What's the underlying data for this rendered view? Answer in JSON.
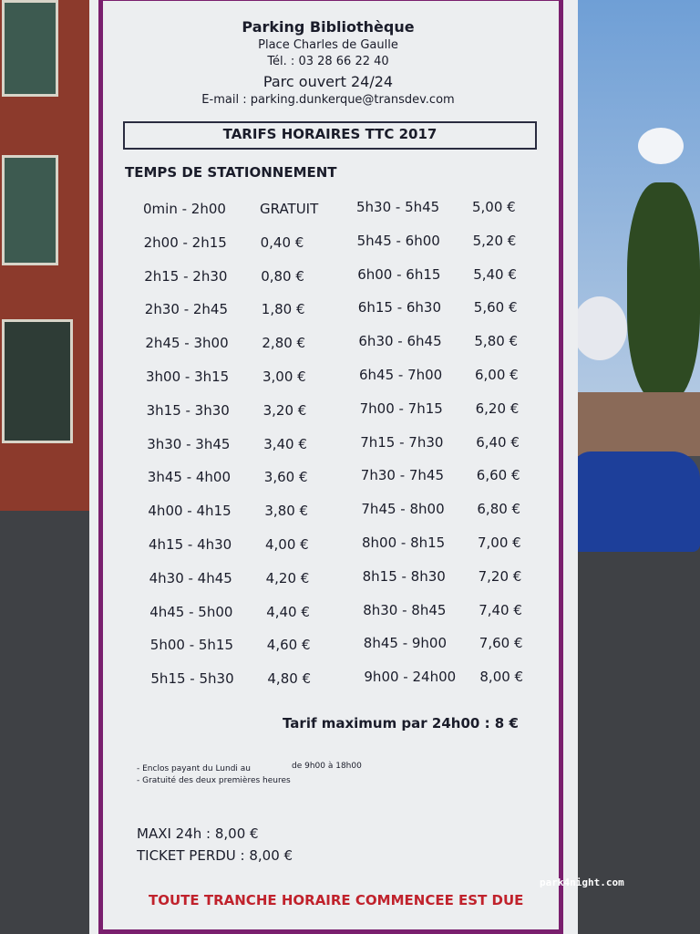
{
  "header": {
    "name": "Parking Bibliothèque",
    "address": "Place Charles de Gaulle",
    "phone": "Tél. : 03 28 66 22 40",
    "hours": "Parc ouvert 24/24",
    "email": "E-mail : parking.dunkerque@transdev.com"
  },
  "banner": "TARIFS HORAIRES TTC 2017",
  "section_title": "TEMPS DE STATIONNEMENT",
  "table": {
    "left": [
      [
        "0min - 2h00",
        "GRATUIT"
      ],
      [
        "2h00 - 2h15",
        "0,40 €"
      ],
      [
        "2h15 - 2h30",
        "0,80 €"
      ],
      [
        "2h30 - 2h45",
        "1,80 €"
      ],
      [
        "2h45 - 3h00",
        "2,80 €"
      ],
      [
        "3h00 - 3h15",
        "3,00 €"
      ],
      [
        "3h15 - 3h30",
        "3,20 €"
      ],
      [
        "3h30 - 3h45",
        "3,40 €"
      ],
      [
        "3h45 - 4h00",
        "3,60 €"
      ],
      [
        "4h00 - 4h15",
        "3,80 €"
      ],
      [
        "4h15 - 4h30",
        "4,00 €"
      ],
      [
        "4h30 - 4h45",
        "4,20 €"
      ],
      [
        "4h45 - 5h00",
        "4,40 €"
      ],
      [
        "5h00 - 5h15",
        "4,60 €"
      ],
      [
        "5h15 - 5h30",
        "4,80 €"
      ]
    ],
    "right": [
      [
        "5h30 - 5h45",
        "5,00 €"
      ],
      [
        "5h45 - 6h00",
        "5,20 €"
      ],
      [
        "6h00 - 6h15",
        "5,40 €"
      ],
      [
        "6h15 - 6h30",
        "5,60 €"
      ],
      [
        "6h30 - 6h45",
        "5,80 €"
      ],
      [
        "6h45 - 7h00",
        "6,00 €"
      ],
      [
        "7h00 - 7h15",
        "6,20 €"
      ],
      [
        "7h15 - 7h30",
        "6,40 €"
      ],
      [
        "7h30 - 7h45",
        "6,60 €"
      ],
      [
        "7h45 - 8h00",
        "6,80 €"
      ],
      [
        "8h00 - 8h15",
        "7,00 €"
      ],
      [
        "8h15 - 8h30",
        "7,20 €"
      ],
      [
        "8h30 - 8h45",
        "7,40 €"
      ],
      [
        "8h45 - 9h00",
        "7,60 €"
      ],
      [
        "9h00 - 24h00",
        "8,00 €"
      ]
    ]
  },
  "max_rate": "Tarif maximum par 24h00 : 8 €",
  "notes": [
    "- Enclos payant du Lundi au",
    "de 9h00 à 18h00",
    "- Gratuité des deux premières heures"
  ],
  "maxi": "MAXI 24h : 8,00 €",
  "lost_ticket": "TICKET PERDU : 8,00 €",
  "footer": "TOUTE TRANCHE HORAIRE COMMENCEE EST DUE",
  "watermark": "park4night.com"
}
